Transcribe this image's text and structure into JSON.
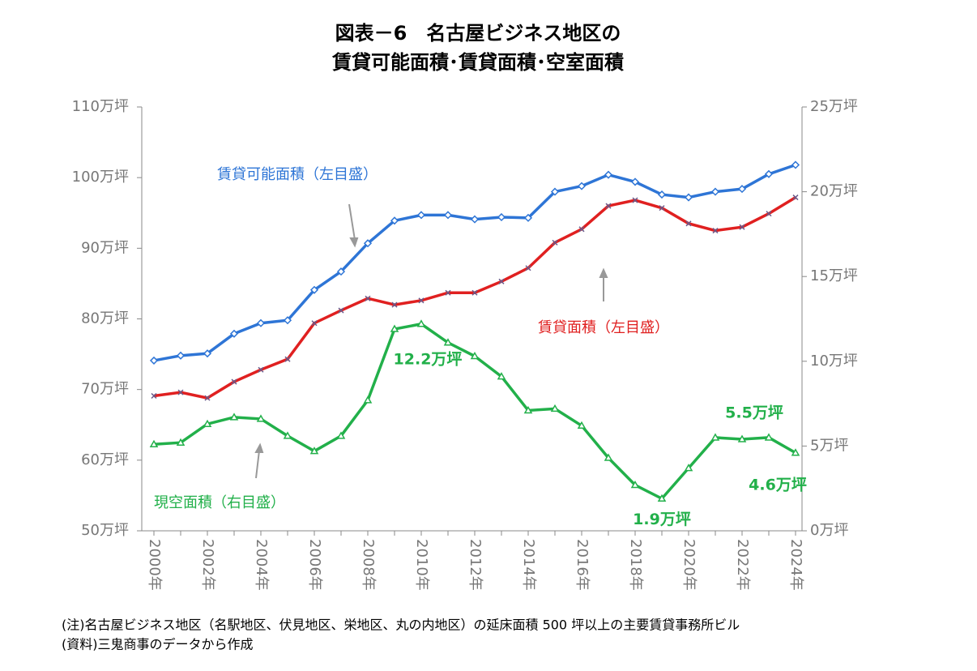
{
  "chart_data": {
    "type": "line",
    "title": [
      "図表－6　名古屋ビジネス地区の",
      "賃貸可能面積･賃貸面積･空室面積"
    ],
    "categories": [
      "2000年",
      null,
      "2002年",
      null,
      "2004年",
      null,
      "2006年",
      null,
      "2008年",
      null,
      "2010年",
      null,
      "2012年",
      null,
      "2014年",
      null,
      "2016年",
      null,
      "2018年",
      null,
      "2020年",
      null,
      "2022年",
      null,
      "2024年"
    ],
    "series": [
      {
        "name": "賃貸可能面積（左目盛）",
        "color": "#2e75d6",
        "marker": "diamond",
        "values": [
          74.1,
          74.8,
          75.1,
          77.9,
          79.4,
          79.8,
          84.1,
          86.7,
          90.7,
          93.9,
          94.7,
          94.7,
          94.1,
          94.4,
          94.3,
          98.0,
          98.8,
          100.4,
          99.4,
          97.6,
          97.2,
          98.0,
          98.4,
          100.5,
          101.8
        ]
      },
      {
        "name": "賃貸面積（左目盛）",
        "color": "#e02020",
        "marker": "x",
        "values": [
          69.1,
          69.6,
          68.8,
          71.1,
          72.8,
          74.3,
          79.4,
          81.2,
          82.9,
          82.0,
          82.6,
          83.7,
          83.7,
          85.3,
          87.2,
          90.8,
          92.7,
          96.0,
          96.8,
          95.7,
          93.5,
          92.5,
          93.0,
          94.9,
          97.2
        ]
      },
      {
        "name": "現空面積（右目盛）",
        "color": "#22b04a",
        "marker": "triangle",
        "axis": "y2",
        "values": [
          5.1,
          5.2,
          6.3,
          6.7,
          6.6,
          5.6,
          4.7,
          5.6,
          7.7,
          11.9,
          12.2,
          11.1,
          10.3,
          9.1,
          7.1,
          7.2,
          6.2,
          4.3,
          2.7,
          1.9,
          3.7,
          5.5,
          5.4,
          5.5,
          4.6
        ],
        "value_labels": [
          null,
          null,
          null,
          null,
          null,
          null,
          null,
          null,
          null,
          null,
          "12.2万坪",
          null,
          null,
          null,
          null,
          null,
          null,
          null,
          null,
          "1.9万坪",
          null,
          null,
          null,
          "5.5万坪",
          "4.6万坪"
        ]
      }
    ],
    "ylim": [
      50,
      110
    ],
    "yticks": [
      {
        "value": 50,
        "label": "50万坪"
      },
      {
        "value": 60,
        "label": "60万坪"
      },
      {
        "value": 70,
        "label": "70万坪"
      },
      {
        "value": 80,
        "label": "80万坪"
      },
      {
        "value": 90,
        "label": "90万坪"
      },
      {
        "value": 100,
        "label": "100万坪"
      },
      {
        "value": 110,
        "label": "110万坪"
      }
    ],
    "y2lim": [
      0,
      25
    ],
    "y2ticks": [
      {
        "value": 0,
        "label": "0万坪"
      },
      {
        "value": 5,
        "label": "5万坪"
      },
      {
        "value": 10,
        "label": "10万坪"
      },
      {
        "value": 15,
        "label": "15万坪"
      },
      {
        "value": 20,
        "label": "20万坪"
      },
      {
        "value": 25,
        "label": "25万坪"
      }
    ],
    "grid": false,
    "notes": [
      "(注)名古屋ビジネス地区（名駅地区、伏見地区、栄地区、丸の内地区）の延床面積 500 坪以上の主要賃貸事務所ビル",
      "(資料)三鬼商事のデータから作成"
    ]
  }
}
